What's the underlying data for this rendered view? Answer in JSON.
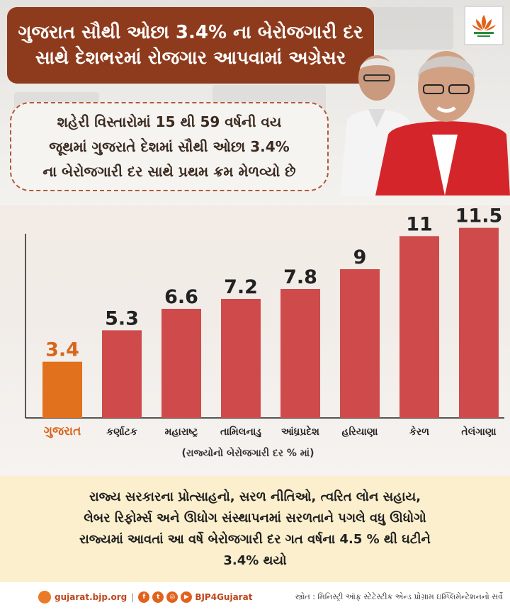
{
  "header": {
    "line1": "ગુજરાત સૌથી ઓછા 3.4% ના બેરોજગારી દર",
    "line2": "સાથે દેશભરમાં રોજગાર આપવામાં અગ્રેસર"
  },
  "logo_icon": "lotus-icon",
  "callout": {
    "line1": "શહેરી વિસ્તારોમાં 15 થી 59 વર્ષની વય",
    "line2": "જૂથમાં ગુજરાતે દેશમાં સૌથી ઓછા 3.4%",
    "line3": "ના બેરોજગારી દર સાથે પ્રથમ ક્રમ મેળવ્યો છે"
  },
  "chart_data": {
    "type": "bar",
    "categories": [
      "ગુજરાત",
      "કર્ણાટક",
      "મહારાષ્ટ્ર",
      "તામિલનાડુ",
      "આંધ્રપ્રદેશ",
      "હરિયાણા",
      "કેરળ",
      "તેલંગાણા"
    ],
    "values": [
      3.4,
      5.3,
      6.6,
      7.2,
      7.8,
      9,
      11,
      11.5
    ],
    "value_labels": [
      "3.4",
      "5.3",
      "6.6",
      "7.2",
      "7.8",
      "9",
      "11",
      "11.5"
    ],
    "ylim": [
      0,
      12
    ],
    "highlight_index": 0,
    "colors": {
      "highlight": "#e2711d",
      "bar": "#cf4b4b",
      "highlight_label": "#d9651a",
      "label": "#222222"
    },
    "note": "(રાજ્યોનો બેરોજગારી દર % માં)"
  },
  "panel": {
    "line1": "રાજ્ય સરકારના પ્રોત્સાહનો, સરળ નીતિઓ, ત્વરિત લોન સહાય,",
    "line2": "લેબર રિફોર્મ્સ અને ઊધોગ સંસ્થાપનમાં સરળતાને પગલે વધુ ઊધોગો",
    "line3": "રાજ્યમાં આવતાં આ વર્ષે બેરોજગારી દર ગત વર્ષના 4.5 % થી ઘટીને",
    "line4": "3.4% થયો"
  },
  "footer": {
    "site": "gujarat.bjp.org",
    "separator": "|",
    "social_icons": [
      "facebook-icon",
      "twitter-icon",
      "instagram-icon",
      "youtube-icon"
    ],
    "handle": "BJP4Gujarat",
    "source": "સ્ત્રોત : મિનિસ્ટ્રી ઑફ સ્ટેટેસ્ટીક એન્ડ પ્રોગ્રામ ઇમ્પ્લિમેન્ટેશનનો સર્વે"
  }
}
